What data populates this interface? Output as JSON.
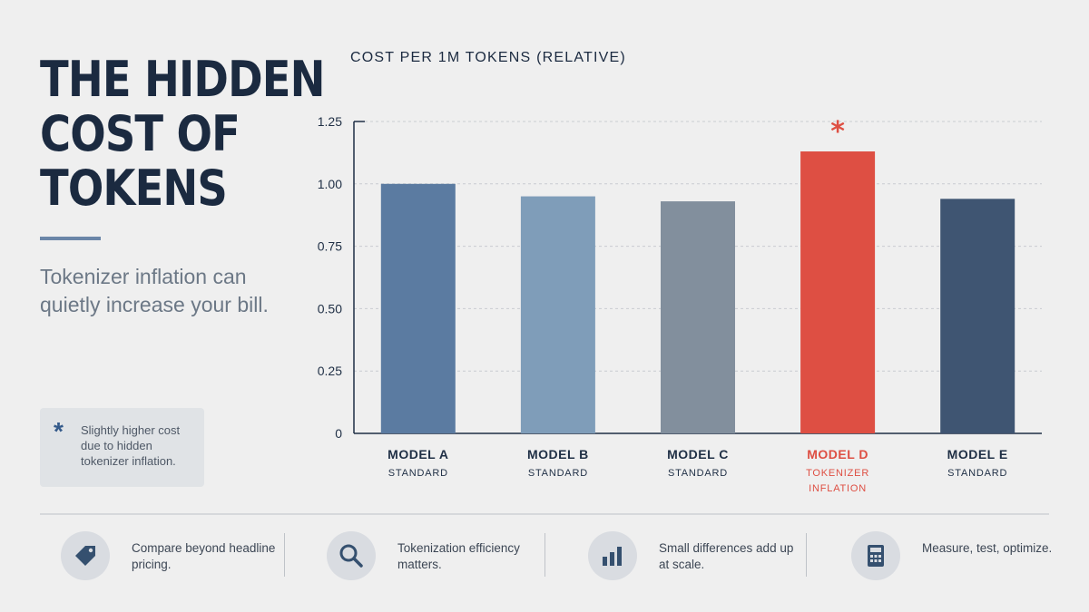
{
  "headline": {
    "lines": [
      "THE HIDDEN",
      "COST OF",
      "TOKENS"
    ]
  },
  "subtitle": "Tokenizer inflation can quietly increase your bill.",
  "note": {
    "symbol": "*",
    "text": "Slightly higher cost due to hidden tokenizer inflation."
  },
  "chart_data": {
    "type": "bar",
    "title": "COST PER 1M TOKENS (RELATIVE)",
    "categories": [
      "MODEL A",
      "MODEL B",
      "MODEL C",
      "MODEL D",
      "MODEL E"
    ],
    "sublabels": [
      "STANDARD",
      "STANDARD",
      "STANDARD",
      "TOKENIZER INFLATION",
      "STANDARD"
    ],
    "values": [
      1.0,
      0.95,
      0.93,
      1.13,
      0.94
    ],
    "bar_colors": [
      "#5b7ba1",
      "#7f9db9",
      "#828f9d",
      "#de4f43",
      "#3f5572"
    ],
    "highlight_index": 3,
    "highlight_marker": "*",
    "highlight_color": "#de4f43",
    "yticks": [
      "0",
      "0.25",
      "0.50",
      "0.75",
      "1.00",
      "1.25"
    ],
    "ylim": [
      0,
      1.25
    ],
    "grid": "dashed"
  },
  "features": [
    {
      "icon": "price-tag-icon",
      "text": "Compare beyond headline pricing."
    },
    {
      "icon": "magnifier-icon",
      "text": "Tokenization efficiency matters."
    },
    {
      "icon": "bar-chart-icon",
      "text": "Small differences add up at scale."
    },
    {
      "icon": "calculator-icon",
      "text": "Measure, test, optimize."
    }
  ]
}
